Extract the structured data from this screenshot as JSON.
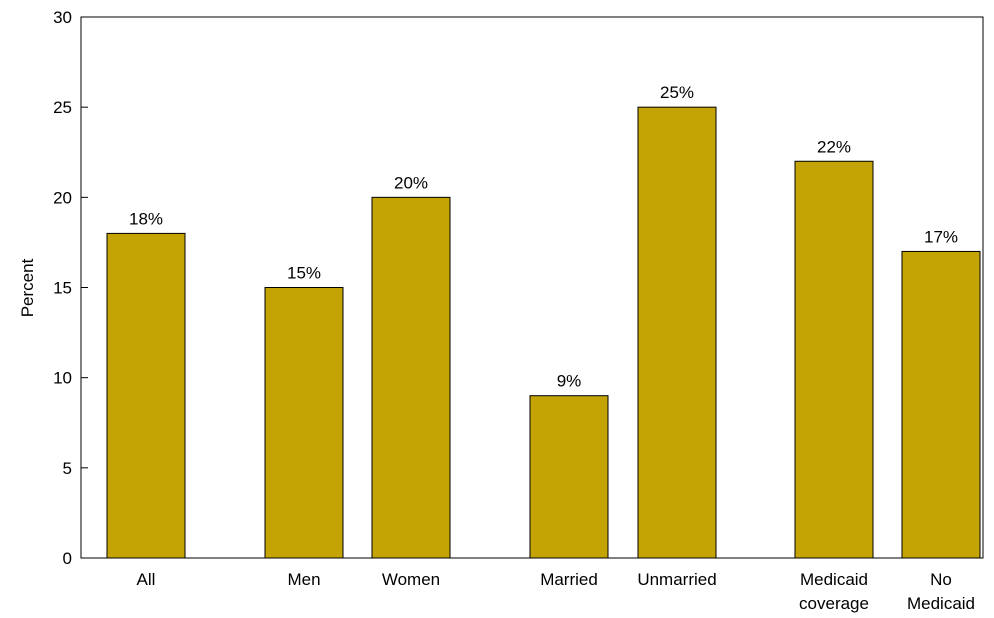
{
  "chart_data": {
    "type": "bar",
    "categories": [
      [
        "All"
      ],
      [
        "Men"
      ],
      [
        "Women"
      ],
      [
        "Married"
      ],
      [
        "Unmarried"
      ],
      [
        "Medicaid",
        "coverage"
      ],
      [
        "No",
        "Medicaid"
      ]
    ],
    "values": [
      18,
      15,
      20,
      9,
      25,
      22,
      17
    ],
    "data_labels": [
      "18%",
      "15%",
      "20%",
      "9%",
      "25%",
      "22%",
      "17%"
    ],
    "ylabel": "Percent",
    "ylim": [
      0,
      30
    ],
    "yticks": [
      "0",
      "5",
      "10",
      "15",
      "20",
      "25",
      "30"
    ],
    "bar_color": "#c4a304",
    "grid": false,
    "legend": "none"
  }
}
